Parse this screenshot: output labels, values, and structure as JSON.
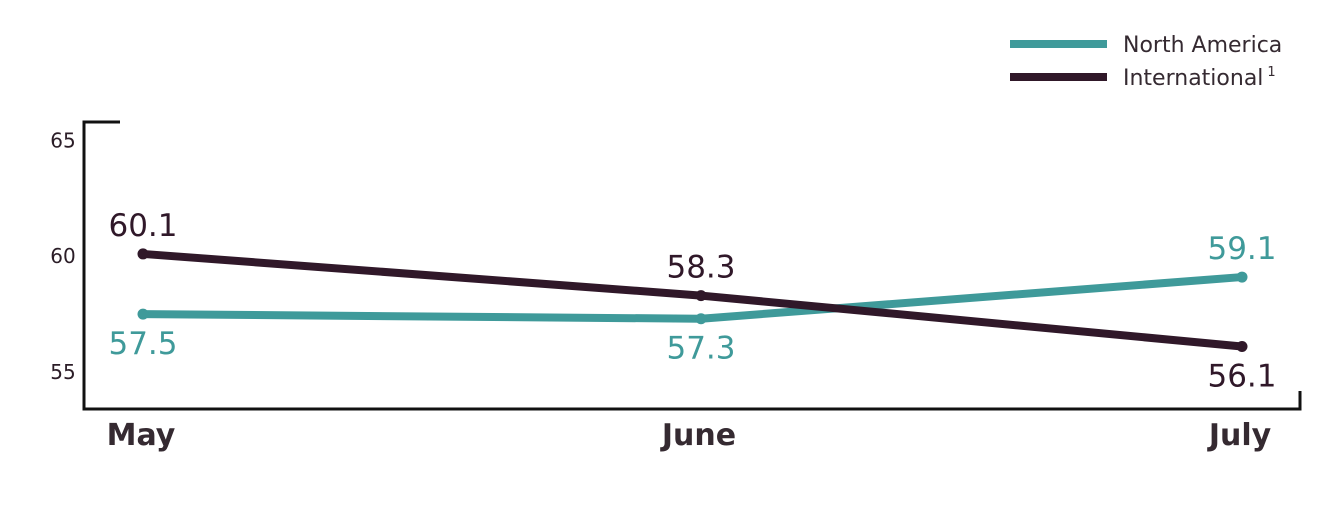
{
  "chart_data": {
    "type": "line",
    "categories": [
      "May",
      "June",
      "July"
    ],
    "series": [
      {
        "name": "North America",
        "values": [
          57.5,
          57.3,
          59.1
        ],
        "data_labels": [
          "57.5",
          "57.3",
          "59.1"
        ],
        "color": "#3f9a9a"
      },
      {
        "name": "International",
        "name_superscript": "1",
        "values": [
          60.1,
          58.3,
          56.1
        ],
        "data_labels": [
          "60.1",
          "58.3",
          "56.1"
        ],
        "color": "#301829"
      }
    ],
    "y_ticks": [
      "55",
      "60",
      "65"
    ],
    "ylim": [
      53.4,
      65.8
    ],
    "grid": false,
    "legend_position": "top-right",
    "title": "",
    "xlabel": "",
    "ylabel": ""
  }
}
